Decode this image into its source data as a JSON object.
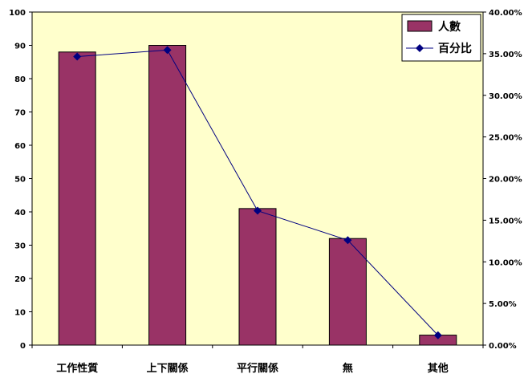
{
  "chart_data": {
    "type": "bar",
    "categories": [
      "工作性質",
      "上下關係",
      "平行關係",
      "無",
      "其他"
    ],
    "series": [
      {
        "name": "人數",
        "type": "bar",
        "axis": "left",
        "values": [
          88,
          90,
          41,
          32,
          3
        ],
        "color": "#993366"
      },
      {
        "name": "百分比",
        "type": "line",
        "axis": "right",
        "values": [
          34.65,
          35.43,
          16.14,
          12.6,
          1.18
        ],
        "color": "#000080"
      }
    ],
    "ylim": [
      0,
      100
    ],
    "yticks": [
      "0",
      "10",
      "20",
      "30",
      "40",
      "50",
      "60",
      "70",
      "80",
      "90",
      "100"
    ],
    "y2lim": [
      0,
      40
    ],
    "y2ticks": [
      "0.00%",
      "5.00%",
      "10.00%",
      "15.00%",
      "20.00%",
      "25.00%",
      "30.00%",
      "35.00%",
      "40.00%"
    ],
    "legend_position": "top-right",
    "plot_background": "#ffffcc",
    "grid": false
  }
}
